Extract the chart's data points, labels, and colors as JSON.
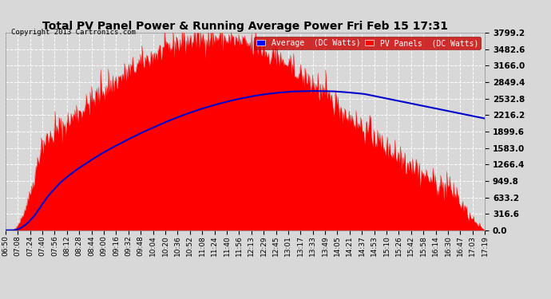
{
  "title": "Total PV Panel Power & Running Average Power Fri Feb 15 17:31",
  "copyright": "Copyright 2013 Cartronics.com",
  "background_color": "#d8d8d8",
  "plot_bg_color": "#d8d8d8",
  "ylabel_values": [
    0.0,
    316.6,
    633.2,
    949.8,
    1266.4,
    1583.0,
    1899.6,
    2216.2,
    2532.8,
    2849.4,
    3166.0,
    3482.6,
    3799.2
  ],
  "ymax": 3799.2,
  "pv_color": "#ff0000",
  "avg_color": "#0000cc",
  "legend_bg": "#cc0000",
  "x_labels": [
    "06:50",
    "07:08",
    "07:24",
    "07:40",
    "07:56",
    "08:12",
    "08:28",
    "08:44",
    "09:00",
    "09:16",
    "09:32",
    "09:48",
    "10:04",
    "10:20",
    "10:36",
    "10:52",
    "11:08",
    "11:24",
    "11:40",
    "11:56",
    "12:13",
    "12:29",
    "12:45",
    "13:01",
    "13:17",
    "13:33",
    "13:49",
    "14:05",
    "14:21",
    "14:37",
    "14:53",
    "15:10",
    "15:26",
    "15:42",
    "15:58",
    "16:14",
    "16:30",
    "16:47",
    "17:03",
    "17:19"
  ]
}
